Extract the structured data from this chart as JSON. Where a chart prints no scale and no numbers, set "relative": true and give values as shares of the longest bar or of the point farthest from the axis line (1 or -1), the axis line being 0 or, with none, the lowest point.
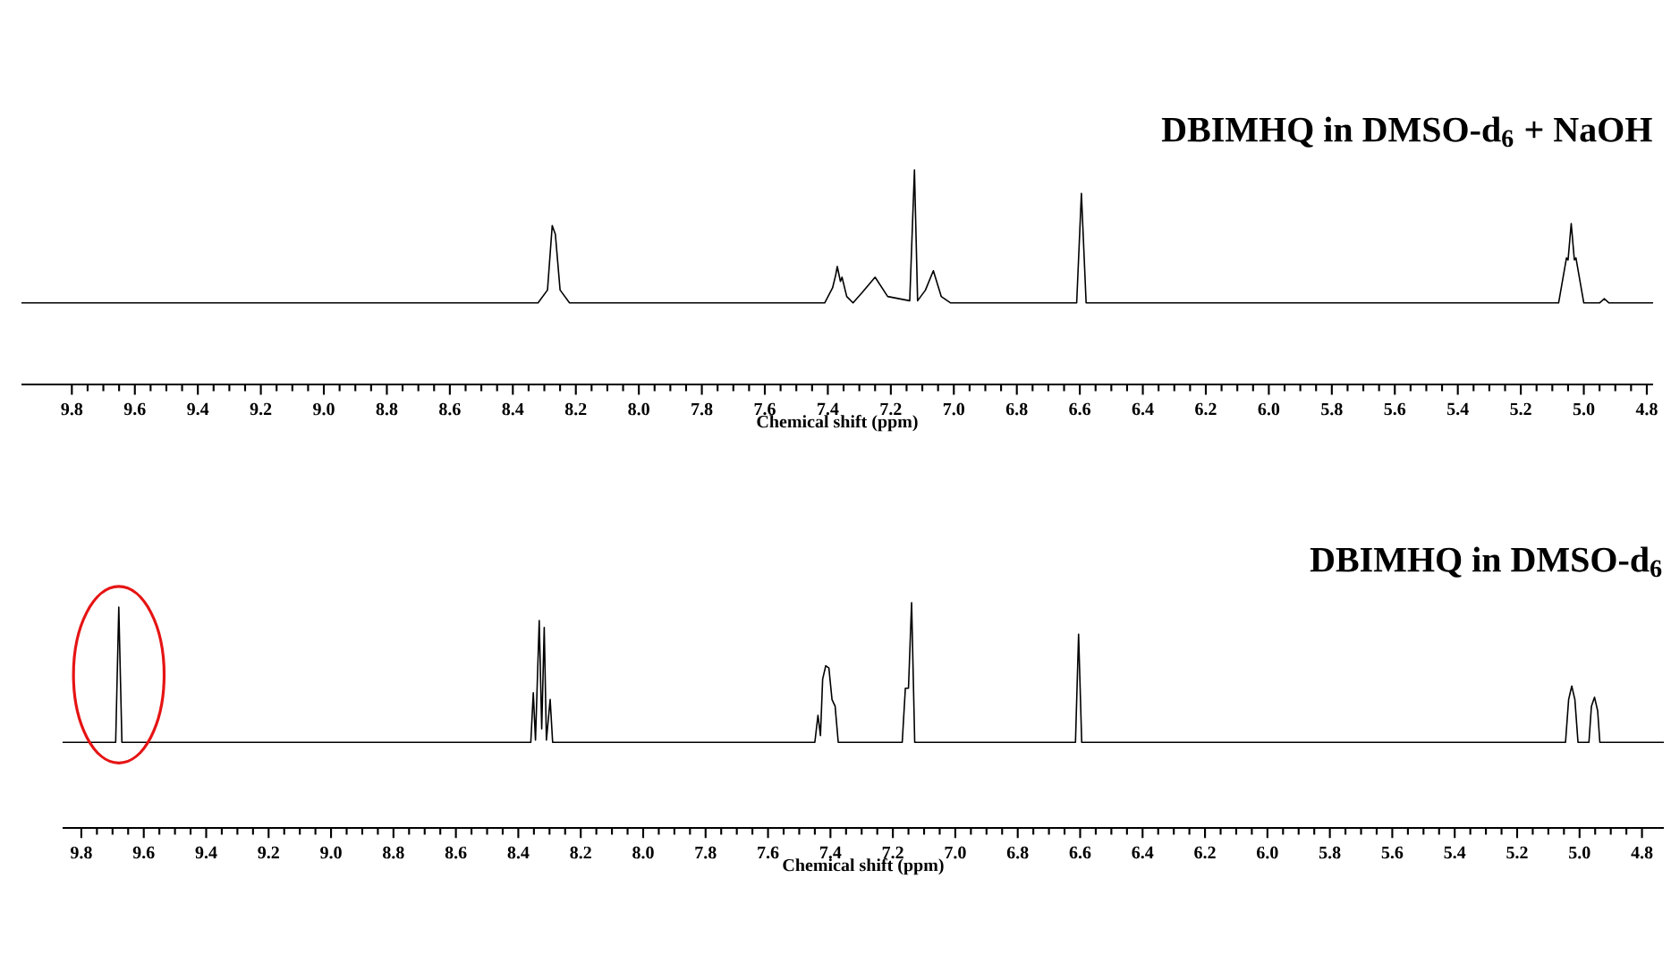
{
  "chart_data": [
    {
      "type": "line",
      "title": "DBIMHQ in DMSO-d$_{6}$ + NaOH",
      "xlabel": "Chemical shift (ppm)",
      "relative": true,
      "xlim": [
        9.96,
        4.78
      ],
      "xticks": [
        9.8,
        9.6,
        9.4,
        9.2,
        {
          "value": 9,
          "label": "9.0"
        },
        8.8,
        8.6,
        8.4,
        8.2,
        {
          "value": 8,
          "label": "8.0"
        },
        7.8,
        7.6,
        7.4,
        7.2,
        {
          "value": 7,
          "label": "7.0"
        },
        6.8,
        6.6,
        6.4,
        6.2,
        {
          "value": 6,
          "label": "6.0"
        },
        5.8,
        5.6,
        5.4,
        5.2,
        {
          "value": 5,
          "label": "5.0"
        },
        4.8
      ],
      "series": [
        {
          "color": "#000000",
          "x": [
            9.96,
            8.32,
            8.29,
            8.275,
            8.265,
            8.25,
            8.22,
            7.41,
            7.385,
            7.375,
            7.37,
            7.36,
            7.355,
            7.34,
            7.32,
            7.29,
            7.25,
            7.21,
            7.14,
            7.125,
            7.115,
            7.09,
            7.065,
            7.04,
            7.01,
            6.61,
            6.595,
            6.58,
            5.08,
            5.055,
            5.05,
            5.04,
            5.03,
            5.025,
            5.0,
            4.95,
            4.935,
            4.92,
            4.78
          ],
          "values": [
            0.38,
            0.38,
            0.44,
            0.74,
            0.7,
            0.44,
            0.38,
            0.38,
            0.45,
            0.51,
            0.55,
            0.48,
            0.5,
            0.41,
            0.38,
            0.43,
            0.5,
            0.41,
            0.39,
            1,
            0.39,
            0.44,
            0.53,
            0.41,
            0.38,
            0.38,
            0.89,
            0.38,
            0.38,
            0.59,
            0.58,
            0.75,
            0.58,
            0.59,
            0.38,
            0.38,
            0.4,
            0.38,
            0.38
          ]
        }
      ]
    },
    {
      "type": "line",
      "title": "DBIMHQ in DMSO-d$_{6}$",
      "xlabel": "Chemical shift (ppm)",
      "relative": true,
      "xlim": [
        9.86,
        4.73
      ],
      "xticks": [
        9.8,
        9.6,
        9.4,
        9.2,
        {
          "value": 9,
          "label": "9.0"
        },
        8.8,
        8.6,
        8.4,
        8.2,
        {
          "value": 8,
          "label": "8.0"
        },
        7.8,
        7.6,
        7.4,
        7.2,
        {
          "value": 7,
          "label": "7.0"
        },
        6.8,
        6.6,
        6.4,
        6.2,
        {
          "value": 6,
          "label": "6.0"
        },
        5.8,
        5.6,
        5.4,
        5.2,
        {
          "value": 5,
          "label": "5.0"
        },
        4.8
      ],
      "series": [
        {
          "color": "#000000",
          "x": [
            9.86,
            9.69,
            9.68,
            9.67,
            8.36,
            8.352,
            8.345,
            8.333,
            8.325,
            8.317,
            8.31,
            8.298,
            8.29,
            7.45,
            7.44,
            7.432,
            7.425,
            7.415,
            7.405,
            7.395,
            7.385,
            7.375,
            7.17,
            7.16,
            7.15,
            7.14,
            7.13,
            6.615,
            6.605,
            6.595,
            5.045,
            5.035,
            5.025,
            5.015,
            5.005,
            4.97,
            4.962,
            4.952,
            4.942,
            4.935,
            4.73
          ],
          "values": [
            0.38,
            0.38,
            0.98,
            0.38,
            0.38,
            0.6,
            0.39,
            0.92,
            0.44,
            0.89,
            0.39,
            0.57,
            0.38,
            0.38,
            0.5,
            0.41,
            0.66,
            0.72,
            0.71,
            0.57,
            0.54,
            0.38,
            0.38,
            0.62,
            0.62,
            1,
            0.38,
            0.38,
            0.86,
            0.38,
            0.38,
            0.57,
            0.63,
            0.57,
            0.38,
            0.38,
            0.54,
            0.58,
            0.52,
            0.38,
            0.38
          ]
        }
      ]
    }
  ]
}
